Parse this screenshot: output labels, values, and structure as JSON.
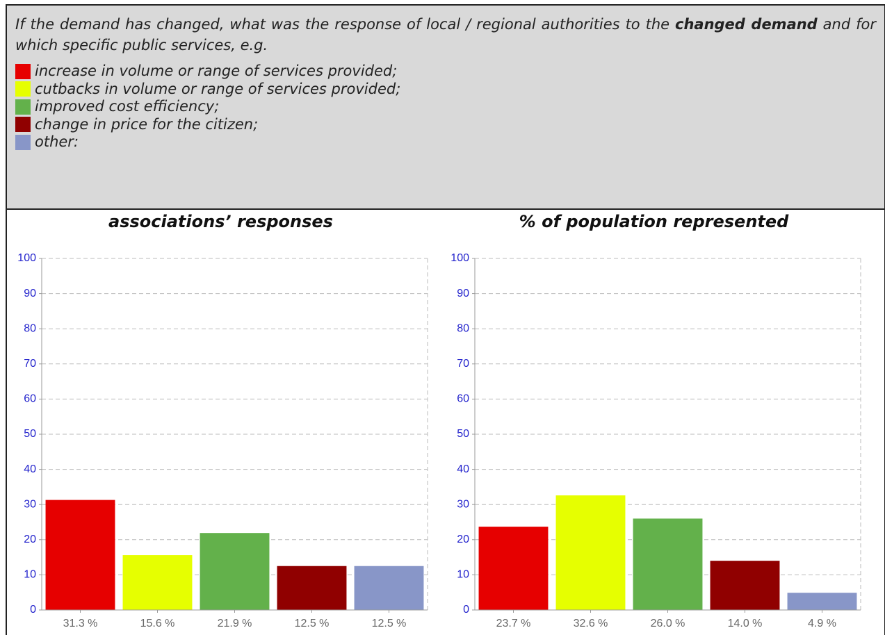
{
  "question": [
    "If the demand has changed, what was the response of local / regional authorities to the ",
    "changed demand",
    " and for which specific public services, e.g."
  ],
  "legend": [
    {
      "label": "increase in volume or range of services provided;",
      "color": "#e60000"
    },
    {
      "label": "cutbacks in volume or range of services provided;",
      "color": "#e6ff00"
    },
    {
      "label": "improved cost efficiency;",
      "color": "#63b14b"
    },
    {
      "label": "change in price for the citizen;",
      "color": "#900000"
    },
    {
      "label": "other:",
      "color": "#8896c8"
    }
  ],
  "chart_data": [
    {
      "type": "bar",
      "title": "associations’ responses",
      "categories": [
        null,
        null,
        null,
        null,
        null
      ],
      "values": [
        31.3,
        15.6,
        21.9,
        12.5,
        12.5
      ],
      "value_labels": [
        "31.3 %",
        "15.6 %",
        "21.9 %",
        "12.5 %",
        "12.5 %"
      ],
      "colors": [
        "#e60000",
        "#e6ff00",
        "#63b14b",
        "#900000",
        "#8896c8"
      ],
      "ylim": [
        0,
        100
      ],
      "yticks": [
        0,
        10,
        20,
        30,
        40,
        50,
        60,
        70,
        80,
        90,
        100
      ],
      "grid": true
    },
    {
      "type": "bar",
      "title": "% of population represented",
      "categories": [
        null,
        null,
        null,
        null,
        null
      ],
      "values": [
        23.7,
        32.6,
        26.0,
        14.0,
        4.9
      ],
      "value_labels": [
        "23.7 %",
        "32.6 %",
        "26.0 %",
        "14.0 %",
        "4.9 %"
      ],
      "colors": [
        "#e60000",
        "#e6ff00",
        "#63b14b",
        "#900000",
        "#8896c8"
      ],
      "ylim": [
        0,
        100
      ],
      "yticks": [
        0,
        10,
        20,
        30,
        40,
        50,
        60,
        70,
        80,
        90,
        100
      ],
      "grid": true
    }
  ]
}
